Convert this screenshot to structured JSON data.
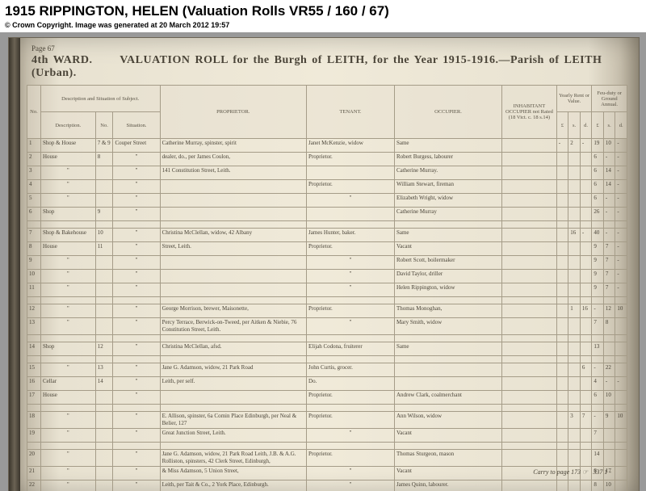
{
  "header": {
    "title": "1915 RIPPINGTON, HELEN (Valuation Rolls VR55 / 160 / 67)",
    "copyright": "© Crown Copyright. Image was generated at 20 March 2012 19:57"
  },
  "page": {
    "number": "67",
    "ward": "4th WARD.",
    "title": "VALUATION ROLL for the Burgh of LEITH, for the Year 1915-1916.—Parish of LEITH (Urban).",
    "carry": "Carry to page 173 ☞",
    "carry_total": "337"
  },
  "cols": {
    "no": "No.",
    "desc": "Description and Situation of Subject.",
    "desc_sub1": "Description.",
    "desc_sub2": "No.",
    "desc_sub3": "Situation.",
    "prop": "PROPRIETOR.",
    "ten": "TENANT.",
    "occ": "OCCUPIER.",
    "inhab": "INHABITANT OCCUPIER not Rated (18 Vict. c. 18 s.14)",
    "rent": "Yearly Rent or Value.",
    "feu": "Feu-duty or Ground Annual.",
    "l": "£",
    "s": "s.",
    "d": "d."
  },
  "rows": [
    {
      "n": "1",
      "desc": "Shop & House",
      "no2": "7 & 9",
      "sit": "Couper Street",
      "prop": "Catherine Murray, spinster, spirit",
      "ten": "Janet McKenzie,  widow",
      "occ": "Same",
      "v": [
        "-",
        "2",
        "-",
        "19",
        "10",
        "-"
      ]
    },
    {
      "n": "2",
      "desc": "House",
      "no2": "8",
      "sit": "\"",
      "prop": "dealer, do., per James Coulon,",
      "ten": "Proprietor.",
      "occ": "Robert Burgess,  labourer",
      "v": [
        "",
        "",
        "",
        "6",
        "-",
        "-"
      ]
    },
    {
      "n": "3",
      "desc": "\"",
      "no2": "",
      "sit": "\"",
      "prop": "141 Constitution Street, Leith.",
      "ten": "",
      "occ": "Catherine Murray.",
      "v": [
        "",
        "",
        "",
        "6",
        "14",
        "-"
      ]
    },
    {
      "n": "4",
      "desc": "\"",
      "no2": "",
      "sit": "\"",
      "prop": "",
      "ten": "Proprietor.",
      "occ": "William Stewart,  fireman",
      "v": [
        "",
        "",
        "",
        "6",
        "14",
        "-"
      ]
    },
    {
      "n": "5",
      "desc": "\"",
      "no2": "",
      "sit": "\"",
      "prop": "",
      "ten": "\"",
      "occ": "Elizabeth Wright, widow",
      "v": [
        "",
        "",
        "",
        "6",
        "-",
        "-"
      ]
    },
    {
      "n": "6",
      "desc": "Shop",
      "no2": "9",
      "sit": "\"",
      "prop": "",
      "ten": "",
      "occ": "Catherine Murray",
      "v": [
        "",
        "",
        "",
        "26",
        "-",
        "-"
      ]
    },
    {
      "sp": true
    },
    {
      "n": "7",
      "desc": "Shop & Bakehouse",
      "no2": "10",
      "sit": "\"",
      "prop": "Christina McClellan, widow, 42 Albany",
      "ten": "James Hunter,  baker.",
      "occ": "Same",
      "v": [
        "",
        "16",
        "-",
        "40",
        "-",
        "-"
      ]
    },
    {
      "n": "8",
      "desc": "House",
      "no2": "11",
      "sit": "\"",
      "prop": "Street, Leith.",
      "ten": "Proprietor.",
      "occ": "Vacant",
      "v": [
        "",
        "",
        "",
        "9",
        "7",
        "-"
      ]
    },
    {
      "n": "9",
      "desc": "\"",
      "no2": "",
      "sit": "\"",
      "prop": "",
      "ten": "\"",
      "occ": "Robert Scott, boilermaker",
      "v": [
        "",
        "",
        "",
        "9",
        "7",
        "-"
      ]
    },
    {
      "n": "10",
      "desc": "\"",
      "no2": "",
      "sit": "\"",
      "prop": "",
      "ten": "\"",
      "occ": "David Taylor,  driller",
      "v": [
        "",
        "",
        "",
        "9",
        "7",
        "-"
      ]
    },
    {
      "n": "11",
      "desc": "\"",
      "no2": "",
      "sit": "\"",
      "prop": "",
      "ten": "\"",
      "occ": "Helen Rippington,  widow",
      "v": [
        "",
        "",
        "",
        "9",
        "7",
        "-"
      ]
    },
    {
      "sp": true
    },
    {
      "n": "12",
      "desc": "\"",
      "no2": "",
      "sit": "\"",
      "prop": "George Morrison, brewer, Maisonette,",
      "ten": "Proprietor.",
      "occ": "Thomas Monoghan,",
      "v": [
        "",
        "1",
        "16",
        "-",
        "12",
        "10"
      ]
    },
    {
      "n": "13",
      "desc": "\"",
      "no2": "",
      "sit": "\"",
      "prop": "Percy Terrace, Berwick-on-Tweed, per Aitken & Niebie, 76 Constitution Street, Leith.",
      "ten": "\"",
      "occ": "Mary Smith,     widow",
      "v": [
        "",
        "",
        "",
        "7",
        "8",
        ""
      ]
    },
    {
      "sp": true
    },
    {
      "n": "14",
      "desc": "Shop",
      "no2": "12",
      "sit": "\"",
      "prop": "Christina McClellan,  afsd.",
      "ten": "Elijah Codona,  fruiterer",
      "occ": "Same",
      "v": [
        "",
        "",
        "",
        "13",
        "",
        ""
      ]
    },
    {
      "sp": true
    },
    {
      "n": "15",
      "desc": "\"",
      "no2": "13",
      "sit": "\"",
      "prop": "Jane G. Adamson, widow, 21 Park Road",
      "ten": "John Curtis,  grocer.",
      "occ": "",
      "v": [
        "",
        "",
        "6",
        "-",
        "22",
        ""
      ]
    },
    {
      "n": "16",
      "desc": "Cellar",
      "no2": "14",
      "sit": "\"",
      "prop": "Leith, per self.",
      "ten": "Do.",
      "occ": "",
      "v": [
        "",
        "",
        "",
        "4",
        "-",
        "-"
      ]
    },
    {
      "n": "17",
      "desc": "House",
      "no2": "",
      "sit": "\"",
      "prop": "",
      "ten": "Proprietor.",
      "occ": "Andrew Clark, coalmerchant",
      "v": [
        "",
        "",
        "",
        "6",
        "10",
        ""
      ]
    },
    {
      "sp": true
    },
    {
      "n": "18",
      "desc": "\"",
      "no2": "",
      "sit": "\"",
      "prop": "E. Allison, spinster, 6a Comin Place Edinburgh, per Neal & Belier, 127",
      "ten": "Proprietor.",
      "occ": "Ann Wilson,   widow",
      "v": [
        "",
        "3",
        "7",
        "-",
        "9",
        "10"
      ]
    },
    {
      "n": "19",
      "desc": "\"",
      "no2": "",
      "sit": "\"",
      "prop": "Great Junction Street, Leith.",
      "ten": "\"",
      "occ": "Vacant",
      "v": [
        "",
        "",
        "",
        "7",
        "",
        ""
      ]
    },
    {
      "sp": true
    },
    {
      "n": "20",
      "desc": "\"",
      "no2": "",
      "sit": "\"",
      "prop": "Jane G. Adamson, widow, 21 Park Road Leith, J.B. & A.G. Rolliston, spinsters, 42 Clerk Street, Edinburgh,",
      "ten": "Proprietor.",
      "occ": "Thomas Sturgeon,  mason",
      "v": [
        "",
        "",
        "",
        "14",
        "",
        ""
      ]
    },
    {
      "n": "21",
      "desc": "\"",
      "no2": "",
      "sit": "\"",
      "prop": "& Miss Adamson, 5 Union Street,",
      "ten": "\"",
      "occ": "Vacant",
      "v": [
        "",
        "",
        "",
        "8",
        "17",
        ""
      ]
    },
    {
      "n": "22",
      "desc": "\"",
      "no2": "",
      "sit": "\"",
      "prop": "Leith, per Tait & Co., 2 York Place, Edinburgh.",
      "ten": "\"",
      "occ": "James Quinn, labourer.",
      "v": [
        "",
        "",
        "",
        "8",
        "10",
        ""
      ]
    }
  ]
}
